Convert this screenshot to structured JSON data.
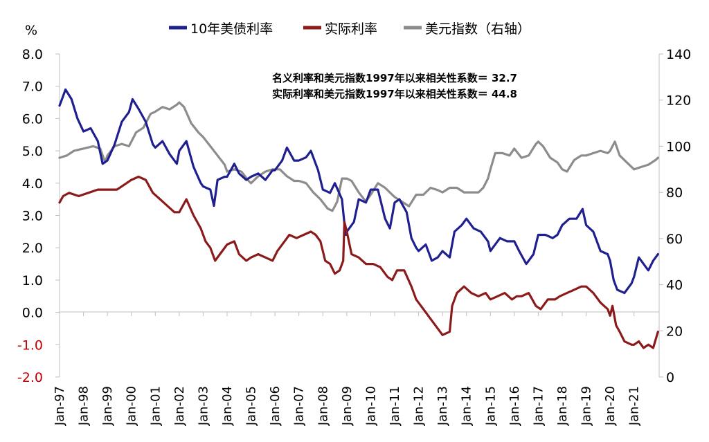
{
  "chart_data": {
    "type": "line",
    "ylabel_left": "%",
    "ylabel_right": "",
    "y_left_range": [
      -2.0,
      8.0
    ],
    "y_right_range": [
      0,
      140
    ],
    "y_left_ticks": [
      "8.0",
      "7.0",
      "6.0",
      "5.0",
      "4.0",
      "3.0",
      "2.0",
      "1.0",
      "0.0",
      "-1.0",
      "-2.0"
    ],
    "y_left_ticks_values": [
      8,
      7,
      6,
      5,
      4,
      3,
      2,
      1,
      0,
      -1,
      -2
    ],
    "y_right_ticks": [
      "140",
      "120",
      "100",
      "80",
      "60",
      "40",
      "20",
      "0"
    ],
    "y_right_ticks_values": [
      140,
      120,
      100,
      80,
      60,
      40,
      20,
      0
    ],
    "x_categories": [
      "Jan-97",
      "Jan-98",
      "Jan-99",
      "Jan-00",
      "Jan-01",
      "Jan-02",
      "Jan-03",
      "Jan-04",
      "Jan-05",
      "Jan-06",
      "Jan-07",
      "Jan-08",
      "Jan-09",
      "Jan-10",
      "Jan-11",
      "Jan-12",
      "Jan-13",
      "Jan-14",
      "Jan-15",
      "Jan-16",
      "Jan-17",
      "Jan-18",
      "Jan-19",
      "Jan-20",
      "Jan-21"
    ],
    "x_range": [
      1997.0,
      2022.05
    ],
    "negative_tick_color": "#c00000",
    "grid": false,
    "legend_placement": "top",
    "annotations": [
      "名义利率和美元指数1997年以来相关性系数＝ 32.7",
      "实际利率和美元指数1997年以来相关性系数＝ 44.8"
    ],
    "series": [
      {
        "name": "10年美债利率",
        "axis": "left",
        "color": "#1f1f8f",
        "x": [
          1997.0,
          1997.1,
          1997.25,
          1997.5,
          1997.75,
          1998.0,
          1998.3,
          1998.6,
          1998.8,
          1999.0,
          1999.3,
          1999.6,
          1999.9,
          2000.05,
          2000.3,
          2000.6,
          2000.9,
          2001.0,
          2001.3,
          2001.6,
          2001.9,
          2002.0,
          2002.3,
          2002.6,
          2002.9,
          2003.0,
          2003.3,
          2003.45,
          2003.6,
          2003.9,
          2004.0,
          2004.3,
          2004.5,
          2004.8,
          2005.0,
          2005.3,
          2005.6,
          2005.9,
          2006.0,
          2006.3,
          2006.5,
          2006.8,
          2007.0,
          2007.3,
          2007.5,
          2007.8,
          2008.0,
          2008.3,
          2008.5,
          2008.8,
          2008.95,
          2009.0,
          2009.3,
          2009.5,
          2009.8,
          2010.0,
          2010.3,
          2010.6,
          2010.8,
          2011.0,
          2011.2,
          2011.5,
          2011.7,
          2011.9,
          2012.0,
          2012.3,
          2012.55,
          2012.8,
          2013.0,
          2013.3,
          2013.5,
          2013.8,
          2014.0,
          2014.3,
          2014.6,
          2014.9,
          2015.0,
          2015.1,
          2015.4,
          2015.7,
          2016.0,
          2016.2,
          2016.5,
          2016.8,
          2017.0,
          2017.3,
          2017.6,
          2017.8,
          2018.0,
          2018.3,
          2018.6,
          2018.85,
          2019.0,
          2019.3,
          2019.6,
          2019.9,
          2020.0,
          2020.15,
          2020.3,
          2020.6,
          2020.9,
          2021.0,
          2021.2,
          2021.4,
          2021.6,
          2021.8,
          2022.0
        ],
        "values": [
          6.4,
          6.6,
          6.9,
          6.6,
          6.0,
          5.6,
          5.7,
          5.3,
          4.6,
          4.7,
          5.2,
          5.9,
          6.2,
          6.6,
          6.3,
          5.9,
          5.2,
          5.1,
          5.3,
          4.9,
          4.6,
          5.0,
          5.3,
          4.5,
          4.0,
          3.9,
          3.8,
          3.3,
          4.1,
          4.2,
          4.2,
          4.6,
          4.3,
          4.1,
          4.2,
          4.3,
          4.1,
          4.4,
          4.4,
          4.7,
          5.1,
          4.7,
          4.7,
          4.8,
          5.0,
          4.4,
          3.8,
          3.7,
          4.0,
          3.5,
          2.4,
          2.5,
          2.8,
          3.5,
          3.4,
          3.8,
          3.8,
          2.9,
          2.6,
          3.4,
          3.5,
          3.1,
          2.3,
          2.0,
          1.9,
          2.1,
          1.6,
          1.7,
          1.9,
          1.7,
          2.5,
          2.7,
          2.9,
          2.6,
          2.5,
          2.2,
          1.9,
          2.0,
          2.3,
          2.2,
          2.2,
          1.9,
          1.5,
          1.8,
          2.4,
          2.4,
          2.3,
          2.4,
          2.7,
          2.9,
          2.9,
          3.2,
          2.7,
          2.5,
          1.9,
          1.8,
          1.6,
          1.0,
          0.7,
          0.6,
          0.9,
          1.1,
          1.7,
          1.5,
          1.3,
          1.6,
          1.8
        ]
      },
      {
        "name": "实际利率",
        "axis": "left",
        "color": "#8b1a1a",
        "x": [
          1997.0,
          1997.15,
          1997.4,
          1997.8,
          1998.2,
          1998.6,
          1999.0,
          1999.4,
          1999.8,
          2000.0,
          2000.3,
          2000.6,
          2000.9,
          2001.2,
          2001.5,
          2001.8,
          2002.0,
          2002.3,
          2002.6,
          2002.9,
          2003.1,
          2003.3,
          2003.5,
          2003.7,
          2004.0,
          2004.3,
          2004.5,
          2004.8,
          2005.0,
          2005.3,
          2005.6,
          2005.9,
          2006.1,
          2006.4,
          2006.6,
          2006.9,
          2007.2,
          2007.5,
          2007.7,
          2007.9,
          2008.1,
          2008.3,
          2008.5,
          2008.7,
          2008.85,
          2008.9,
          2009.0,
          2009.2,
          2009.5,
          2009.8,
          2010.1,
          2010.4,
          2010.7,
          2010.9,
          2011.1,
          2011.4,
          2011.7,
          2011.9,
          2012.2,
          2012.5,
          2012.8,
          2013.0,
          2013.3,
          2013.4,
          2013.6,
          2013.9,
          2014.2,
          2014.5,
          2014.8,
          2015.0,
          2015.3,
          2015.6,
          2015.9,
          2016.1,
          2016.3,
          2016.6,
          2016.9,
          2017.1,
          2017.4,
          2017.7,
          2017.9,
          2018.2,
          2018.5,
          2018.8,
          2019.0,
          2019.3,
          2019.6,
          2019.9,
          2020.0,
          2020.1,
          2020.25,
          2020.4,
          2020.6,
          2020.9,
          2021.0,
          2021.2,
          2021.4,
          2021.6,
          2021.8,
          2022.0
        ],
        "values": [
          3.4,
          3.6,
          3.7,
          3.6,
          3.7,
          3.8,
          3.8,
          3.8,
          4.0,
          4.1,
          4.2,
          4.1,
          3.7,
          3.5,
          3.3,
          3.1,
          3.1,
          3.5,
          3.0,
          2.6,
          2.2,
          2.0,
          1.6,
          1.8,
          2.1,
          2.2,
          1.8,
          1.6,
          1.7,
          1.8,
          1.7,
          1.6,
          1.9,
          2.2,
          2.4,
          2.3,
          2.4,
          2.5,
          2.4,
          2.2,
          1.6,
          1.5,
          1.2,
          1.3,
          1.6,
          2.8,
          2.5,
          1.8,
          1.7,
          1.5,
          1.5,
          1.4,
          1.1,
          1.0,
          1.3,
          1.3,
          0.8,
          0.4,
          0.1,
          -0.2,
          -0.5,
          -0.7,
          -0.6,
          0.2,
          0.6,
          0.8,
          0.6,
          0.5,
          0.6,
          0.4,
          0.5,
          0.6,
          0.4,
          0.5,
          0.5,
          0.6,
          0.2,
          0.1,
          0.4,
          0.4,
          0.5,
          0.6,
          0.7,
          0.8,
          0.8,
          0.6,
          0.3,
          0.1,
          -0.1,
          0.2,
          -0.4,
          -0.6,
          -0.9,
          -1.0,
          -1.0,
          -0.9,
          -1.1,
          -1.0,
          -1.1,
          -0.6
        ]
      },
      {
        "name": "美元指数（右轴）",
        "axis": "right",
        "color": "#8c8c8c",
        "x": [
          1997.0,
          1997.3,
          1997.6,
          1998.0,
          1998.4,
          1998.7,
          1998.9,
          1999.0,
          1999.3,
          1999.6,
          1999.9,
          2000.2,
          2000.5,
          2000.8,
          2001.0,
          2001.3,
          2001.6,
          2001.9,
          2002.0,
          2002.2,
          2002.5,
          2002.8,
          2003.0,
          2003.3,
          2003.6,
          2003.9,
          2004.0,
          2004.3,
          2004.6,
          2004.9,
          2005.0,
          2005.3,
          2005.6,
          2005.9,
          2006.2,
          2006.5,
          2006.8,
          2007.0,
          2007.3,
          2007.6,
          2007.9,
          2008.2,
          2008.4,
          2008.6,
          2008.8,
          2009.0,
          2009.2,
          2009.5,
          2009.8,
          2010.0,
          2010.3,
          2010.6,
          2010.9,
          2011.0,
          2011.3,
          2011.6,
          2011.9,
          2012.2,
          2012.5,
          2012.8,
          2013.0,
          2013.3,
          2013.6,
          2013.9,
          2014.2,
          2014.5,
          2014.7,
          2014.9,
          2015.0,
          2015.2,
          2015.5,
          2015.8,
          2016.0,
          2016.3,
          2016.6,
          2016.9,
          2017.0,
          2017.2,
          2017.5,
          2017.8,
          2018.0,
          2018.2,
          2018.5,
          2018.8,
          2019.0,
          2019.3,
          2019.6,
          2019.9,
          2020.0,
          2020.2,
          2020.4,
          2020.7,
          2020.9,
          2021.0,
          2021.3,
          2021.6,
          2021.9,
          2022.0
        ],
        "values": [
          95,
          96,
          98,
          99,
          100,
          99,
          93,
          96,
          100,
          101,
          100,
          106,
          108,
          114,
          115,
          117,
          116,
          118,
          119,
          117,
          110,
          106,
          104,
          100,
          96,
          92,
          89,
          90,
          89,
          85,
          84,
          87,
          89,
          90,
          90,
          87,
          85,
          85,
          84,
          80,
          77,
          73,
          72,
          76,
          86,
          86,
          85,
          80,
          76,
          79,
          84,
          82,
          79,
          78,
          76,
          74,
          79,
          79,
          82,
          81,
          80,
          82,
          82,
          80,
          80,
          80,
          82,
          86,
          90,
          97,
          97,
          96,
          99,
          95,
          96,
          101,
          102,
          100,
          95,
          93,
          90,
          89,
          94,
          96,
          96,
          97,
          98,
          97,
          98,
          102,
          96,
          93,
          91,
          90,
          91,
          92,
          94,
          95
        ]
      }
    ]
  }
}
